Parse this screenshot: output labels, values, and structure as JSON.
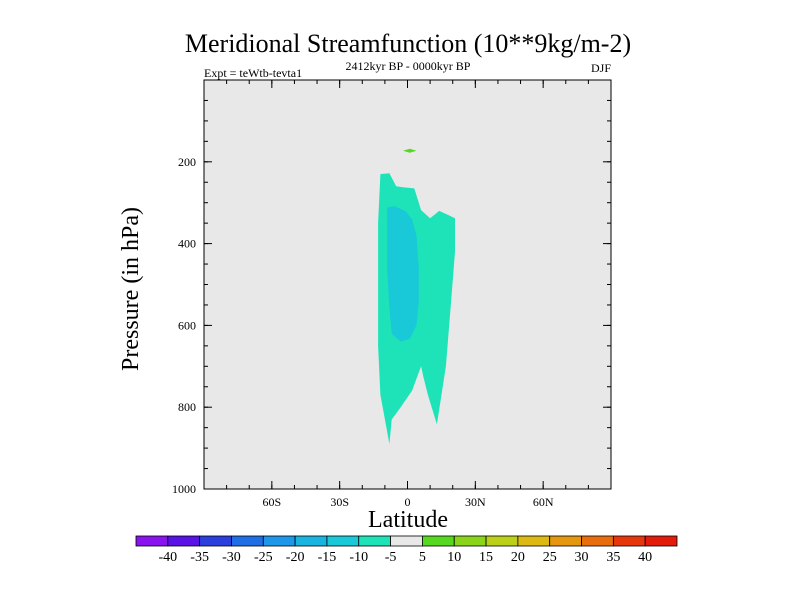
{
  "chart_data": {
    "type": "contour",
    "title": "Meridional Streamfunction (10**9kg/m-2)",
    "subtitle_left": "Expt = teWtb-tevta1",
    "subtitle_center": "2412kyr BP - 0000kyr BP",
    "subtitle_right": "DJF",
    "xlabel": "Latitude",
    "ylabel": "Pressure (in hPa)",
    "xlim": [
      -90,
      90
    ],
    "ylim": [
      1000,
      0
    ],
    "xticks": [
      {
        "value": -60,
        "label": "60S"
      },
      {
        "value": -30,
        "label": "30S"
      },
      {
        "value": 0,
        "label": "0"
      },
      {
        "value": 30,
        "label": "30N"
      },
      {
        "value": 60,
        "label": "60N"
      }
    ],
    "yticks": [
      {
        "value": 200,
        "label": "200"
      },
      {
        "value": 400,
        "label": "400"
      },
      {
        "value": 600,
        "label": "600"
      },
      {
        "value": 800,
        "label": "800"
      },
      {
        "value": 1000,
        "label": "1000"
      }
    ],
    "background_color": "#e8e8e8",
    "regions": [
      {
        "name": "outer-negative-contour",
        "level": "-10 to -5",
        "color": "#1ee3b9",
        "polygon": [
          [
            -12,
            230
          ],
          [
            -8,
            228
          ],
          [
            -5,
            260
          ],
          [
            -2,
            262
          ],
          [
            3,
            265
          ],
          [
            6,
            318
          ],
          [
            10,
            338
          ],
          [
            14,
            320
          ],
          [
            18,
            330
          ],
          [
            21,
            338
          ],
          [
            21,
            420
          ],
          [
            19,
            560
          ],
          [
            17,
            700
          ],
          [
            13,
            842
          ],
          [
            9,
            770
          ],
          [
            7,
            725
          ],
          [
            6,
            700
          ],
          [
            2,
            760
          ],
          [
            -3,
            800
          ],
          [
            -7,
            830
          ],
          [
            -8,
            890
          ],
          [
            -12,
            770
          ],
          [
            -13,
            650
          ],
          [
            -13,
            500
          ],
          [
            -13,
            350
          ]
        ]
      },
      {
        "name": "inner-negative-contour",
        "level": "-15 to -10",
        "color": "#19c9d8",
        "polygon": [
          [
            -9,
            312
          ],
          [
            -6,
            308
          ],
          [
            -1,
            320
          ],
          [
            2,
            340
          ],
          [
            4,
            380
          ],
          [
            5,
            460
          ],
          [
            5,
            540
          ],
          [
            4,
            600
          ],
          [
            1,
            633
          ],
          [
            -3,
            640
          ],
          [
            -7,
            620
          ],
          [
            -8,
            560
          ],
          [
            -9,
            460
          ],
          [
            -9,
            380
          ]
        ]
      },
      {
        "name": "positive-contour",
        "level": "5 to 10",
        "color": "#55d81f",
        "polygon": [
          [
            -2,
            173
          ],
          [
            1,
            168
          ],
          [
            4,
            173
          ],
          [
            1,
            178
          ]
        ]
      }
    ],
    "colorbar": {
      "labels": [
        "-40",
        "-35",
        "-30",
        "-25",
        "-20",
        "-15",
        "-10",
        "-5",
        "5",
        "10",
        "15",
        "20",
        "25",
        "30",
        "35",
        "40"
      ],
      "colors": [
        "#8a14f0",
        "#5a13e6",
        "#2b3fdf",
        "#1f6ee6",
        "#1e96ea",
        "#19b4e0",
        "#19c9d8",
        "#1ee3b9",
        "#e8e8e8",
        "#55d81f",
        "#8ad51a",
        "#bcd018",
        "#dcb913",
        "#e69710",
        "#e86e0d",
        "#e6360c",
        "#e21b0a"
      ]
    }
  }
}
